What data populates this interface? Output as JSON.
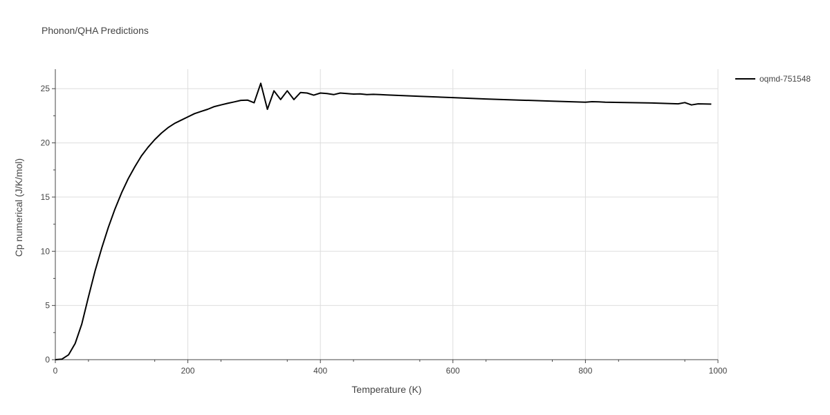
{
  "chart_data": {
    "type": "line",
    "title": "Phonon/QHA Predictions",
    "xlabel": "Temperature (K)",
    "ylabel": "Cp numerical (J/K/mol)",
    "xlim": [
      0,
      1000
    ],
    "ylim": [
      0,
      26.8
    ],
    "x_ticks": [
      0,
      200,
      400,
      600,
      800,
      1000
    ],
    "y_ticks": [
      0,
      5,
      10,
      15,
      20,
      25
    ],
    "x_tick_labels": [
      "0",
      "200",
      "400",
      "600",
      "800",
      "1000"
    ],
    "y_tick_labels": [
      "0",
      "5",
      "10",
      "15",
      "20",
      "25"
    ],
    "grid": true,
    "legend_position": "top-right",
    "series": [
      {
        "name": "oqmd-751548",
        "color": "#000000",
        "x": [
          0,
          10,
          20,
          30,
          40,
          50,
          60,
          70,
          80,
          90,
          100,
          110,
          120,
          130,
          140,
          150,
          160,
          170,
          180,
          190,
          200,
          210,
          220,
          230,
          240,
          250,
          260,
          270,
          280,
          290,
          300,
          310,
          320,
          330,
          340,
          350,
          360,
          370,
          380,
          390,
          400,
          410,
          420,
          430,
          440,
          450,
          460,
          470,
          480,
          490,
          500,
          550,
          600,
          650,
          700,
          750,
          800,
          810,
          820,
          830,
          900,
          940,
          950,
          960,
          970,
          990
        ],
        "y": [
          0.0,
          0.05,
          0.45,
          1.5,
          3.3,
          5.8,
          8.2,
          10.3,
          12.2,
          13.9,
          15.4,
          16.7,
          17.8,
          18.8,
          19.6,
          20.3,
          20.9,
          21.4,
          21.8,
          22.1,
          22.4,
          22.7,
          22.9,
          23.1,
          23.35,
          23.5,
          23.65,
          23.78,
          23.92,
          23.95,
          23.7,
          25.5,
          23.1,
          24.8,
          24.0,
          24.8,
          24.0,
          24.65,
          24.6,
          24.4,
          24.6,
          24.55,
          24.45,
          24.6,
          24.55,
          24.5,
          24.52,
          24.45,
          24.48,
          24.45,
          24.42,
          24.3,
          24.18,
          24.05,
          23.95,
          23.85,
          23.75,
          23.8,
          23.78,
          23.75,
          23.68,
          23.6,
          23.72,
          23.5,
          23.6,
          23.58
        ]
      }
    ]
  }
}
